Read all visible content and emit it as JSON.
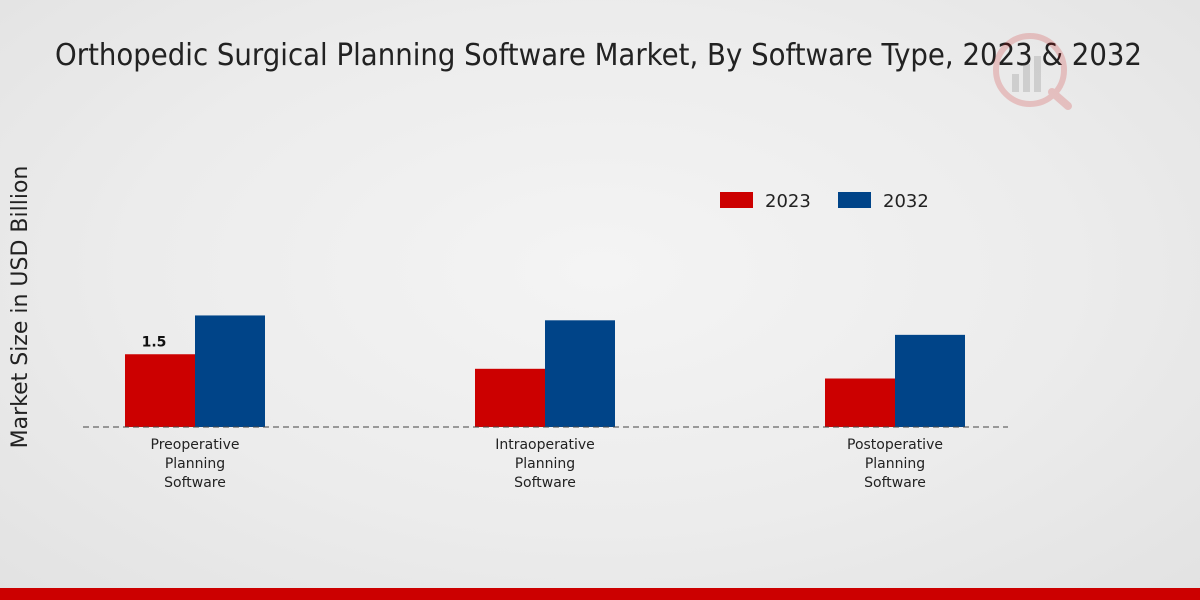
{
  "chart_data": {
    "type": "bar",
    "title": "Orthopedic Surgical Planning Software Market, By Software Type, 2023 & 2032",
    "xlabel": "",
    "ylabel": "Market Size in USD Billion",
    "categories": [
      "Preoperative Planning Software",
      "Intraoperative Planning Software",
      "Postoperative Planning Software"
    ],
    "category_lines": [
      [
        "Preoperative",
        "Planning",
        "Software"
      ],
      [
        "Intraoperative",
        "Planning",
        "Software"
      ],
      [
        "Postoperative",
        "Planning",
        "Software"
      ]
    ],
    "series": [
      {
        "name": "2023",
        "color": "#cc0000",
        "values": [
          1.5,
          1.2,
          1.0
        ]
      },
      {
        "name": "2032",
        "color": "#004488",
        "values": [
          2.3,
          2.2,
          1.9
        ]
      }
    ],
    "data_labels": [
      {
        "series": "2023",
        "category_index": 0,
        "text": "1.5"
      }
    ],
    "ylim": [
      0,
      3.5
    ],
    "grid": false,
    "legend_position": "top-right"
  },
  "colors": {
    "accent": "#cc0000",
    "secondary": "#004488"
  }
}
